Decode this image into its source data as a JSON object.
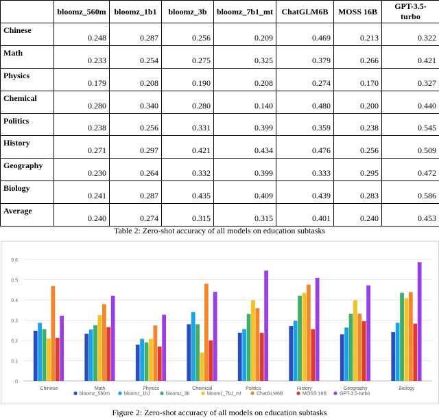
{
  "table": {
    "headers": [
      "",
      "bloomz_560m",
      "bloomz_1b1",
      "bloomz_3b",
      "bloomz_7b1_mt",
      "ChatGLM6B",
      "MOSS 16B",
      "GPT-3.5-turbo"
    ],
    "rows": [
      {
        "name": "Chinese",
        "values": [
          "0.248",
          "0.287",
          "0.256",
          "0.209",
          "0.469",
          "0.213",
          "0.322"
        ]
      },
      {
        "name": "Math",
        "values": [
          "0.233",
          "0.254",
          "0.275",
          "0.325",
          "0.379",
          "0.266",
          "0.421"
        ]
      },
      {
        "name": "Physics",
        "values": [
          "0.179",
          "0.208",
          "0.190",
          "0.208",
          "0.274",
          "0.170",
          "0.327"
        ]
      },
      {
        "name": "Chemical",
        "values": [
          "0.280",
          "0.340",
          "0.280",
          "0.140",
          "0.480",
          "0.200",
          "0.440"
        ]
      },
      {
        "name": "Politics",
        "values": [
          "0.238",
          "0.256",
          "0.331",
          "0.399",
          "0.359",
          "0.238",
          "0.545"
        ]
      },
      {
        "name": "History",
        "values": [
          "0.271",
          "0.297",
          "0.421",
          "0.434",
          "0.476",
          "0.256",
          "0.509"
        ]
      },
      {
        "name": "Geography",
        "values": [
          "0.230",
          "0.264",
          "0.332",
          "0.399",
          "0.333",
          "0.295",
          "0.472"
        ]
      },
      {
        "name": "Biology",
        "values": [
          "0.241",
          "0.287",
          "0.435",
          "0.409",
          "0.439",
          "0.283",
          "0.586"
        ]
      },
      {
        "name": "Average",
        "values": [
          "0.240",
          "0.274",
          "0.315",
          "0.315",
          "0.401",
          "0.240",
          "0.453"
        ]
      }
    ],
    "caption": "Table 2: Zero-shot accuracy of all models on education subtasks"
  },
  "figure_caption": "Figure 2: Zero-shot accuracy of all models on education subtasks",
  "chart_data": {
    "type": "bar",
    "categories": [
      "Chinese",
      "Math",
      "Physics",
      "Chemical",
      "Politics",
      "History",
      "Geography",
      "Biology"
    ],
    "series": [
      {
        "name": "bloomz_560m",
        "color": "#2a4dc0",
        "values": [
          0.248,
          0.233,
          0.179,
          0.28,
          0.238,
          0.271,
          0.23,
          0.241
        ]
      },
      {
        "name": "bloomz_1b1",
        "color": "#19a3e8",
        "values": [
          0.287,
          0.254,
          0.208,
          0.34,
          0.256,
          0.297,
          0.264,
          0.287
        ]
      },
      {
        "name": "bloomz_3b",
        "color": "#3fae6b",
        "values": [
          0.256,
          0.275,
          0.19,
          0.28,
          0.331,
          0.421,
          0.332,
          0.435
        ]
      },
      {
        "name": "bloomz_7b1_mt",
        "color": "#f5c125",
        "values": [
          0.209,
          0.325,
          0.208,
          0.14,
          0.399,
          0.434,
          0.399,
          0.409
        ]
      },
      {
        "name": "ChatGLM6B",
        "color": "#f5852a",
        "values": [
          0.469,
          0.379,
          0.274,
          0.48,
          0.359,
          0.476,
          0.333,
          0.439
        ]
      },
      {
        "name": "MOSS 16B",
        "color": "#dd3b2e",
        "values": [
          0.213,
          0.266,
          0.17,
          0.2,
          0.238,
          0.256,
          0.295,
          0.283
        ]
      },
      {
        "name": "GPT-3.5-turbo",
        "color": "#9b3fe3",
        "values": [
          0.322,
          0.421,
          0.327,
          0.44,
          0.545,
          0.509,
          0.472,
          0.586
        ]
      }
    ],
    "yticks": [
      "0",
      "0.1",
      "0.2",
      "0.3",
      "0.4",
      "0.5",
      "0.6"
    ],
    "ylim": [
      0,
      0.6
    ],
    "grid": true,
    "legend_position": "bottom"
  }
}
